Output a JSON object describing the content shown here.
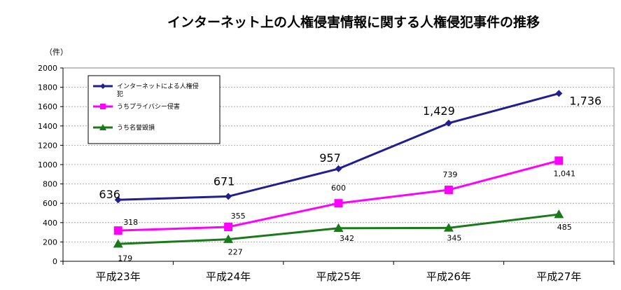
{
  "chart_data": {
    "type": "line",
    "title": "インターネット上の人権侵害情報に関する人権侵犯事件の推移",
    "ylabel": "（件）",
    "xlabel": "",
    "ylim": [
      0,
      2000
    ],
    "yticks": [
      0,
      200,
      400,
      600,
      800,
      1000,
      1200,
      1400,
      1600,
      1800,
      2000
    ],
    "categories": [
      "平成23年",
      "平成24年",
      "平成25年",
      "平成26年",
      "平成27年"
    ],
    "grid": true,
    "legend_position": "top-left",
    "series": [
      {
        "name": "インターネットによる人権侵犯",
        "color": "#1f1f8f",
        "marker": "diamond",
        "values": [
          636,
          671,
          957,
          1429,
          1736
        ],
        "labels": [
          "636",
          "671",
          "957",
          "1,429",
          "1,736"
        ]
      },
      {
        "name": "うちプライバシー侵害",
        "color": "#ff00ff",
        "marker": "square",
        "values": [
          318,
          355,
          600,
          739,
          1041
        ],
        "labels": [
          "318",
          "355",
          "600",
          "739",
          "1,041"
        ]
      },
      {
        "name": "うち名誉毀損",
        "color": "#1a7a1a",
        "marker": "triangle",
        "values": [
          179,
          227,
          342,
          345,
          485
        ],
        "labels": [
          "179",
          "227",
          "342",
          "345",
          "485"
        ]
      }
    ]
  }
}
